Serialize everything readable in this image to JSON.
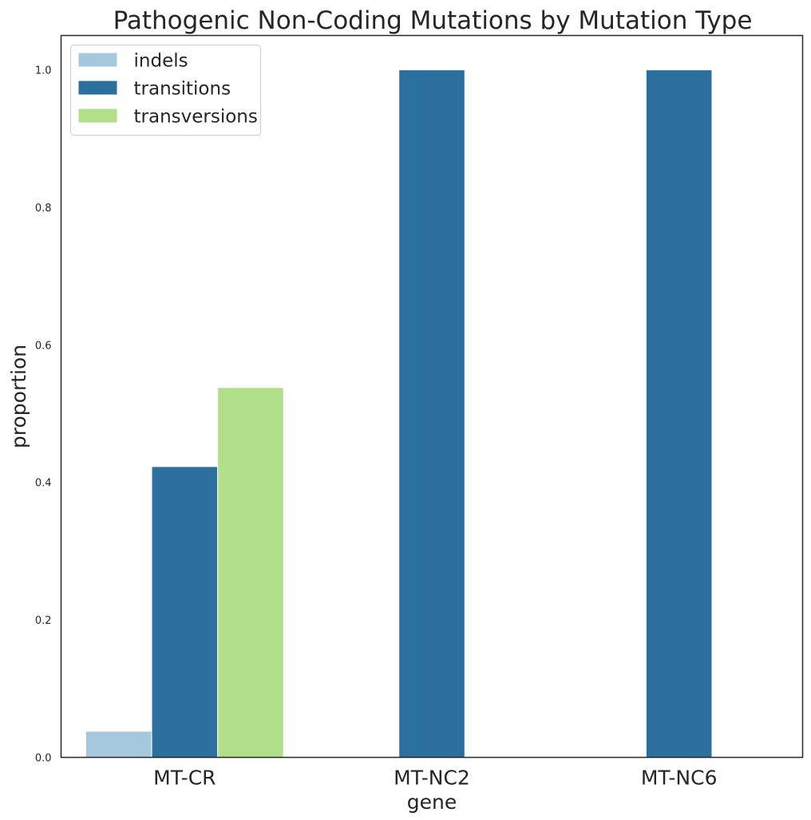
{
  "chart_data": {
    "type": "bar",
    "title": "Pathogenic Non-Coding Mutations by Mutation Type",
    "xlabel": "gene",
    "ylabel": "proportion",
    "categories": [
      "MT-CR",
      "MT-NC2",
      "MT-NC6"
    ],
    "series": [
      {
        "name": "indels",
        "values": [
          0.038,
          0,
          0
        ],
        "color": "#a6c8dd"
      },
      {
        "name": "transitions",
        "values": [
          0.423,
          1.0,
          1.0
        ],
        "color": "#2b6f9e"
      },
      {
        "name": "transversions",
        "values": [
          0.538,
          0,
          0
        ],
        "color": "#b2df8a"
      }
    ],
    "ylim": [
      0,
      1.05
    ],
    "yticks": [
      "0.0",
      "0.2",
      "0.4",
      "0.6",
      "0.8",
      "1.0"
    ],
    "grid": false,
    "legend_position": "top-left"
  }
}
